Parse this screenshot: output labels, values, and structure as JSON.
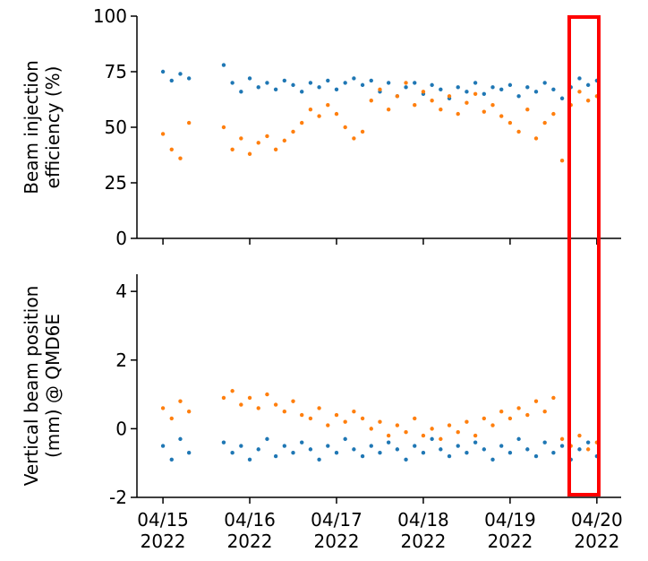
{
  "chart_data": [
    {
      "type": "scatter",
      "ylabel": [
        "Beam injection",
        "efficiency (%)"
      ],
      "xlim": [
        14.7,
        20.28
      ],
      "xticks": [
        15,
        16,
        17,
        18,
        19,
        20
      ],
      "xticklabels": false,
      "ylim": [
        0,
        100
      ],
      "yticks": [
        0,
        25,
        50,
        75,
        100
      ],
      "series": [
        {
          "color": "#1f77b4",
          "x": [
            15.0,
            15.1,
            15.2,
            15.3,
            15.7,
            15.8,
            15.9,
            16.0,
            16.1,
            16.2,
            16.3,
            16.4,
            16.5,
            16.6,
            16.7,
            16.8,
            16.9,
            17.0,
            17.1,
            17.2,
            17.3,
            17.4,
            17.5,
            17.6,
            17.7,
            17.8,
            17.9,
            18.0,
            18.1,
            18.2,
            18.3,
            18.4,
            18.5,
            18.6,
            18.7,
            18.8,
            18.9,
            19.0,
            19.1,
            19.2,
            19.3,
            19.4,
            19.5,
            19.6,
            19.7,
            19.8,
            19.9,
            20.0
          ],
          "values": [
            75,
            71,
            74,
            72,
            78,
            70,
            66,
            72,
            68,
            70,
            67,
            71,
            69,
            66,
            70,
            68,
            71,
            67,
            70,
            72,
            69,
            71,
            66,
            70,
            64,
            68,
            70,
            65,
            69,
            67,
            63,
            68,
            66,
            70,
            65,
            68,
            67,
            69,
            64,
            68,
            66,
            70,
            67,
            63,
            68,
            72,
            69,
            71
          ]
        },
        {
          "color": "#ff7f0e",
          "x": [
            15.0,
            15.1,
            15.2,
            15.3,
            15.7,
            15.8,
            15.9,
            16.0,
            16.1,
            16.2,
            16.3,
            16.4,
            16.5,
            16.6,
            16.7,
            16.8,
            16.9,
            17.0,
            17.1,
            17.2,
            17.3,
            17.4,
            17.5,
            17.6,
            17.7,
            17.8,
            17.9,
            18.0,
            18.1,
            18.2,
            18.3,
            18.4,
            18.5,
            18.6,
            18.7,
            18.8,
            18.9,
            19.0,
            19.1,
            19.2,
            19.3,
            19.4,
            19.5,
            19.6,
            19.7,
            19.8,
            19.9,
            20.0
          ],
          "values": [
            47,
            40,
            36,
            52,
            50,
            40,
            45,
            38,
            43,
            46,
            40,
            44,
            48,
            52,
            58,
            55,
            60,
            56,
            50,
            45,
            48,
            62,
            67,
            58,
            64,
            70,
            60,
            66,
            62,
            58,
            64,
            56,
            61,
            65,
            57,
            60,
            55,
            52,
            48,
            58,
            45,
            52,
            56,
            35,
            60,
            66,
            62,
            64
          ]
        }
      ]
    },
    {
      "type": "scatter",
      "ylabel": [
        "Vertical beam position",
        "(mm) @ QMD6E"
      ],
      "xlim": [
        14.7,
        20.28
      ],
      "xticks": [
        {
          "value": 15,
          "label": "04/15\n2022"
        },
        {
          "value": 16,
          "label": "04/16\n2022"
        },
        {
          "value": 17,
          "label": "04/17\n2022"
        },
        {
          "value": 18,
          "label": "04/18\n2022"
        },
        {
          "value": 19,
          "label": "04/19\n2022"
        },
        {
          "value": 20,
          "label": "04/20\n2022"
        }
      ],
      "xticklabels": true,
      "ylim": [
        -2,
        4.5
      ],
      "yticks": [
        -2,
        0,
        2,
        4
      ],
      "series": [
        {
          "color": "#1f77b4",
          "x": [
            15.0,
            15.1,
            15.2,
            15.3,
            15.7,
            15.8,
            15.9,
            16.0,
            16.1,
            16.2,
            16.3,
            16.4,
            16.5,
            16.6,
            16.7,
            16.8,
            16.9,
            17.0,
            17.1,
            17.2,
            17.3,
            17.4,
            17.5,
            17.6,
            17.7,
            17.8,
            17.9,
            18.0,
            18.1,
            18.2,
            18.3,
            18.4,
            18.5,
            18.6,
            18.7,
            18.8,
            18.9,
            19.0,
            19.1,
            19.2,
            19.3,
            19.4,
            19.5,
            19.6,
            19.7,
            19.8,
            19.9,
            20.0
          ],
          "values": [
            -0.5,
            -0.9,
            -0.3,
            -0.7,
            -0.4,
            -0.7,
            -0.5,
            -0.9,
            -0.6,
            -0.3,
            -0.8,
            -0.5,
            -0.7,
            -0.4,
            -0.6,
            -0.9,
            -0.5,
            -0.7,
            -0.3,
            -0.6,
            -0.8,
            -0.5,
            -0.7,
            -0.4,
            -0.6,
            -0.9,
            -0.5,
            -0.7,
            -0.3,
            -0.6,
            -0.8,
            -0.5,
            -0.7,
            -0.4,
            -0.6,
            -0.9,
            -0.5,
            -0.7,
            -0.3,
            -0.6,
            -0.8,
            -0.4,
            -0.7,
            -0.5,
            -0.9,
            -0.6,
            -0.4,
            -0.8
          ]
        },
        {
          "color": "#ff7f0e",
          "x": [
            15.0,
            15.1,
            15.2,
            15.3,
            15.7,
            15.8,
            15.9,
            16.0,
            16.1,
            16.2,
            16.3,
            16.4,
            16.5,
            16.6,
            16.7,
            16.8,
            16.9,
            17.0,
            17.1,
            17.2,
            17.3,
            17.4,
            17.5,
            17.6,
            17.7,
            17.8,
            17.9,
            18.0,
            18.1,
            18.2,
            18.3,
            18.4,
            18.5,
            18.6,
            18.7,
            18.8,
            18.9,
            19.0,
            19.1,
            19.2,
            19.3,
            19.4,
            19.5,
            19.6,
            19.7,
            19.8,
            19.9,
            20.0
          ],
          "values": [
            0.6,
            0.3,
            0.8,
            0.5,
            0.9,
            1.1,
            0.7,
            0.9,
            0.6,
            1.0,
            0.7,
            0.5,
            0.8,
            0.4,
            0.3,
            0.6,
            0.1,
            0.4,
            0.2,
            0.5,
            0.3,
            0.0,
            0.2,
            -0.2,
            0.1,
            -0.1,
            0.3,
            -0.2,
            0.0,
            -0.3,
            0.1,
            -0.1,
            0.2,
            -0.2,
            0.3,
            0.1,
            0.5,
            0.3,
            0.6,
            0.4,
            0.8,
            0.5,
            0.9,
            -0.3,
            -0.5,
            -0.2,
            -0.6,
            -0.4
          ]
        }
      ]
    }
  ]
}
